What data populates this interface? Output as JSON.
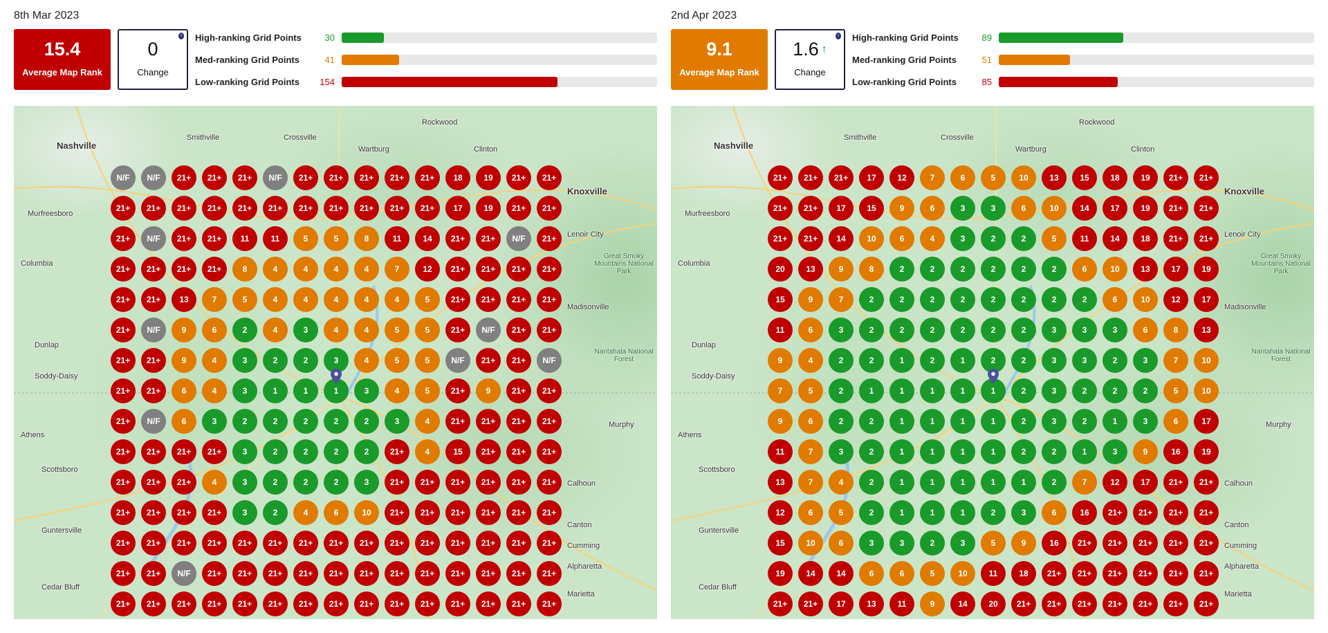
{
  "colors": {
    "high": "#1a9a2a",
    "med": "#e07b00",
    "low": "#c00000",
    "not_found": "#808080",
    "pin": "#4a4f9e"
  },
  "legend_max_points": 225,
  "panels": [
    {
      "date": "8th Mar 2023",
      "avg_rank": {
        "value": "15.4",
        "label": "Average Map Rank",
        "color": "#c00000"
      },
      "change": {
        "value": "0",
        "label": "Change",
        "direction": "none",
        "info_icon": "info-icon"
      },
      "stats": [
        {
          "label": "High-ranking Grid Points",
          "count": "30",
          "color": "#1a9a2a"
        },
        {
          "label": "Med-ranking Grid Points",
          "count": "41",
          "color": "#e07b00"
        },
        {
          "label": "Low-ranking Grid Points",
          "count": "154",
          "color": "#c00000"
        }
      ],
      "grid": [
        [
          "N/F",
          "N/F",
          "21+",
          "21+",
          "21+",
          "N/F",
          "21+",
          "21+",
          "21+",
          "21+",
          "21+",
          "18",
          "19",
          "21+",
          "21+"
        ],
        [
          "21+",
          "21+",
          "21+",
          "21+",
          "21+",
          "21+",
          "21+",
          "21+",
          "21+",
          "21+",
          "21+",
          "17",
          "19",
          "21+",
          "21+"
        ],
        [
          "21+",
          "N/F",
          "21+",
          "21+",
          "11",
          "11",
          "5",
          "5",
          "8",
          "11",
          "14",
          "21+",
          "21+",
          "N/F",
          "21+"
        ],
        [
          "21+",
          "21+",
          "21+",
          "21+",
          "8",
          "4",
          "4",
          "4",
          "4",
          "7",
          "12",
          "21+",
          "21+",
          "21+",
          "21+"
        ],
        [
          "21+",
          "21+",
          "13",
          "7",
          "5",
          "4",
          "4",
          "4",
          "4",
          "4",
          "5",
          "21+",
          "21+",
          "21+",
          "21+"
        ],
        [
          "21+",
          "N/F",
          "9",
          "6",
          "2",
          "4",
          "3",
          "4",
          "4",
          "5",
          "5",
          "21+",
          "N/F",
          "21+",
          "21+"
        ],
        [
          "21+",
          "21+",
          "9",
          "4",
          "3",
          "2",
          "2",
          "3",
          "4",
          "5",
          "5",
          "N/F",
          "21+",
          "21+",
          "N/F"
        ],
        [
          "21+",
          "21+",
          "6",
          "4",
          "3",
          "1",
          "1",
          "1",
          "3",
          "4",
          "5",
          "21+",
          "9",
          "21+",
          "21+"
        ],
        [
          "21+",
          "N/F",
          "6",
          "3",
          "2",
          "2",
          "2",
          "2",
          "2",
          "3",
          "4",
          "21+",
          "21+",
          "21+",
          "21+"
        ],
        [
          "21+",
          "21+",
          "21+",
          "21+",
          "3",
          "2",
          "2",
          "2",
          "2",
          "21+",
          "4",
          "15",
          "21+",
          "21+",
          "21+"
        ],
        [
          "21+",
          "21+",
          "21+",
          "4",
          "3",
          "2",
          "2",
          "2",
          "3",
          "21+",
          "21+",
          "21+",
          "21+",
          "21+",
          "21+"
        ],
        [
          "21+",
          "21+",
          "21+",
          "21+",
          "3",
          "2",
          "4",
          "6",
          "10",
          "21+",
          "21+",
          "21+",
          "21+",
          "21+",
          "21+"
        ],
        [
          "21+",
          "21+",
          "21+",
          "21+",
          "21+",
          "21+",
          "21+",
          "21+",
          "21+",
          "21+",
          "21+",
          "21+",
          "21+",
          "21+",
          "21+"
        ],
        [
          "21+",
          "21+",
          "N/F",
          "21+",
          "21+",
          "21+",
          "21+",
          "21+",
          "21+",
          "21+",
          "21+",
          "21+",
          "21+",
          "21+",
          "21+"
        ],
        [
          "21+",
          "21+",
          "21+",
          "21+",
          "21+",
          "21+",
          "21+",
          "21+",
          "21+",
          "21+",
          "21+",
          "21+",
          "21+",
          "21+",
          "21+"
        ]
      ]
    },
    {
      "date": "2nd Apr 2023",
      "avg_rank": {
        "value": "9.1",
        "label": "Average Map Rank",
        "color": "#e07b00"
      },
      "change": {
        "value": "1.6",
        "label": "Change",
        "direction": "up",
        "info_icon": "info-icon"
      },
      "stats": [
        {
          "label": "High-ranking Grid Points",
          "count": "89",
          "color": "#1a9a2a"
        },
        {
          "label": "Med-ranking Grid Points",
          "count": "51",
          "color": "#e07b00"
        },
        {
          "label": "Low-ranking Grid Points",
          "count": "85",
          "color": "#c00000"
        }
      ],
      "grid": [
        [
          "21+",
          "21+",
          "21+",
          "17",
          "12",
          "7",
          "6",
          "5",
          "10",
          "13",
          "15",
          "18",
          "19",
          "21+",
          "21+"
        ],
        [
          "21+",
          "21+",
          "17",
          "15",
          "9",
          "6",
          "3",
          "3",
          "6",
          "10",
          "14",
          "17",
          "19",
          "21+",
          "21+"
        ],
        [
          "21+",
          "21+",
          "14",
          "10",
          "6",
          "4",
          "3",
          "2",
          "2",
          "5",
          "11",
          "14",
          "18",
          "21+",
          "21+"
        ],
        [
          "20",
          "13",
          "9",
          "8",
          "2",
          "2",
          "2",
          "2",
          "2",
          "2",
          "6",
          "10",
          "13",
          "17",
          "19"
        ],
        [
          "15",
          "9",
          "7",
          "2",
          "2",
          "2",
          "2",
          "2",
          "2",
          "2",
          "2",
          "6",
          "10",
          "12",
          "17"
        ],
        [
          "11",
          "6",
          "3",
          "2",
          "2",
          "2",
          "2",
          "2",
          "2",
          "3",
          "3",
          "3",
          "6",
          "8",
          "13"
        ],
        [
          "9",
          "4",
          "2",
          "2",
          "1",
          "2",
          "1",
          "2",
          "2",
          "3",
          "3",
          "2",
          "3",
          "7",
          "10"
        ],
        [
          "7",
          "5",
          "2",
          "1",
          "1",
          "1",
          "1",
          "1",
          "2",
          "3",
          "2",
          "2",
          "2",
          "5",
          "10"
        ],
        [
          "9",
          "6",
          "2",
          "2",
          "1",
          "1",
          "1",
          "1",
          "2",
          "3",
          "2",
          "1",
          "3",
          "6",
          "17"
        ],
        [
          "11",
          "7",
          "3",
          "2",
          "1",
          "1",
          "1",
          "1",
          "2",
          "2",
          "1",
          "3",
          "9",
          "16",
          "19"
        ],
        [
          "13",
          "7",
          "4",
          "2",
          "1",
          "1",
          "1",
          "1",
          "1",
          "2",
          "7",
          "12",
          "17",
          "21+",
          "21+"
        ],
        [
          "12",
          "6",
          "5",
          "2",
          "1",
          "1",
          "1",
          "2",
          "3",
          "6",
          "16",
          "21+",
          "21+",
          "21+",
          "21+"
        ],
        [
          "15",
          "10",
          "6",
          "3",
          "3",
          "2",
          "3",
          "5",
          "9",
          "16",
          "21+",
          "21+",
          "21+",
          "21+",
          "21+"
        ],
        [
          "19",
          "14",
          "14",
          "6",
          "6",
          "5",
          "10",
          "11",
          "18",
          "21+",
          "21+",
          "21+",
          "21+",
          "21+",
          "21+"
        ],
        [
          "21+",
          "21+",
          "17",
          "13",
          "11",
          "9",
          "14",
          "20",
          "21+",
          "21+",
          "21+",
          "21+",
          "21+",
          "21+",
          "21+"
        ]
      ]
    }
  ],
  "map_labels": {
    "nashville": "Nashville",
    "knoxville": "Knoxville",
    "smoky": "Great Smoky Mountains National Park",
    "nantahala": "Nantahala National Forest",
    "columbia": "Columbia",
    "athens": "Athens",
    "murfreesboro": "Murfreesboro",
    "clinton": "Clinton",
    "wartburg": "Wartburg",
    "crossville": "Crossville",
    "smithville": "Smithville",
    "rockwood": "Rockwood",
    "lenoir": "Lenoir City",
    "madisonville": "Madisonville",
    "dunlap": "Dunlap",
    "soddy": "Soddy-Daisy",
    "calhoun": "Calhoun",
    "canton": "Canton",
    "cumming": "Cumming",
    "alpharetta": "Alpharetta",
    "marietta": "Marietta",
    "guntersville": "Guntersville",
    "scottsboro": "Scottsboro",
    "cedar_bluff": "Cedar Bluff",
    "murphy": "Murphy"
  }
}
